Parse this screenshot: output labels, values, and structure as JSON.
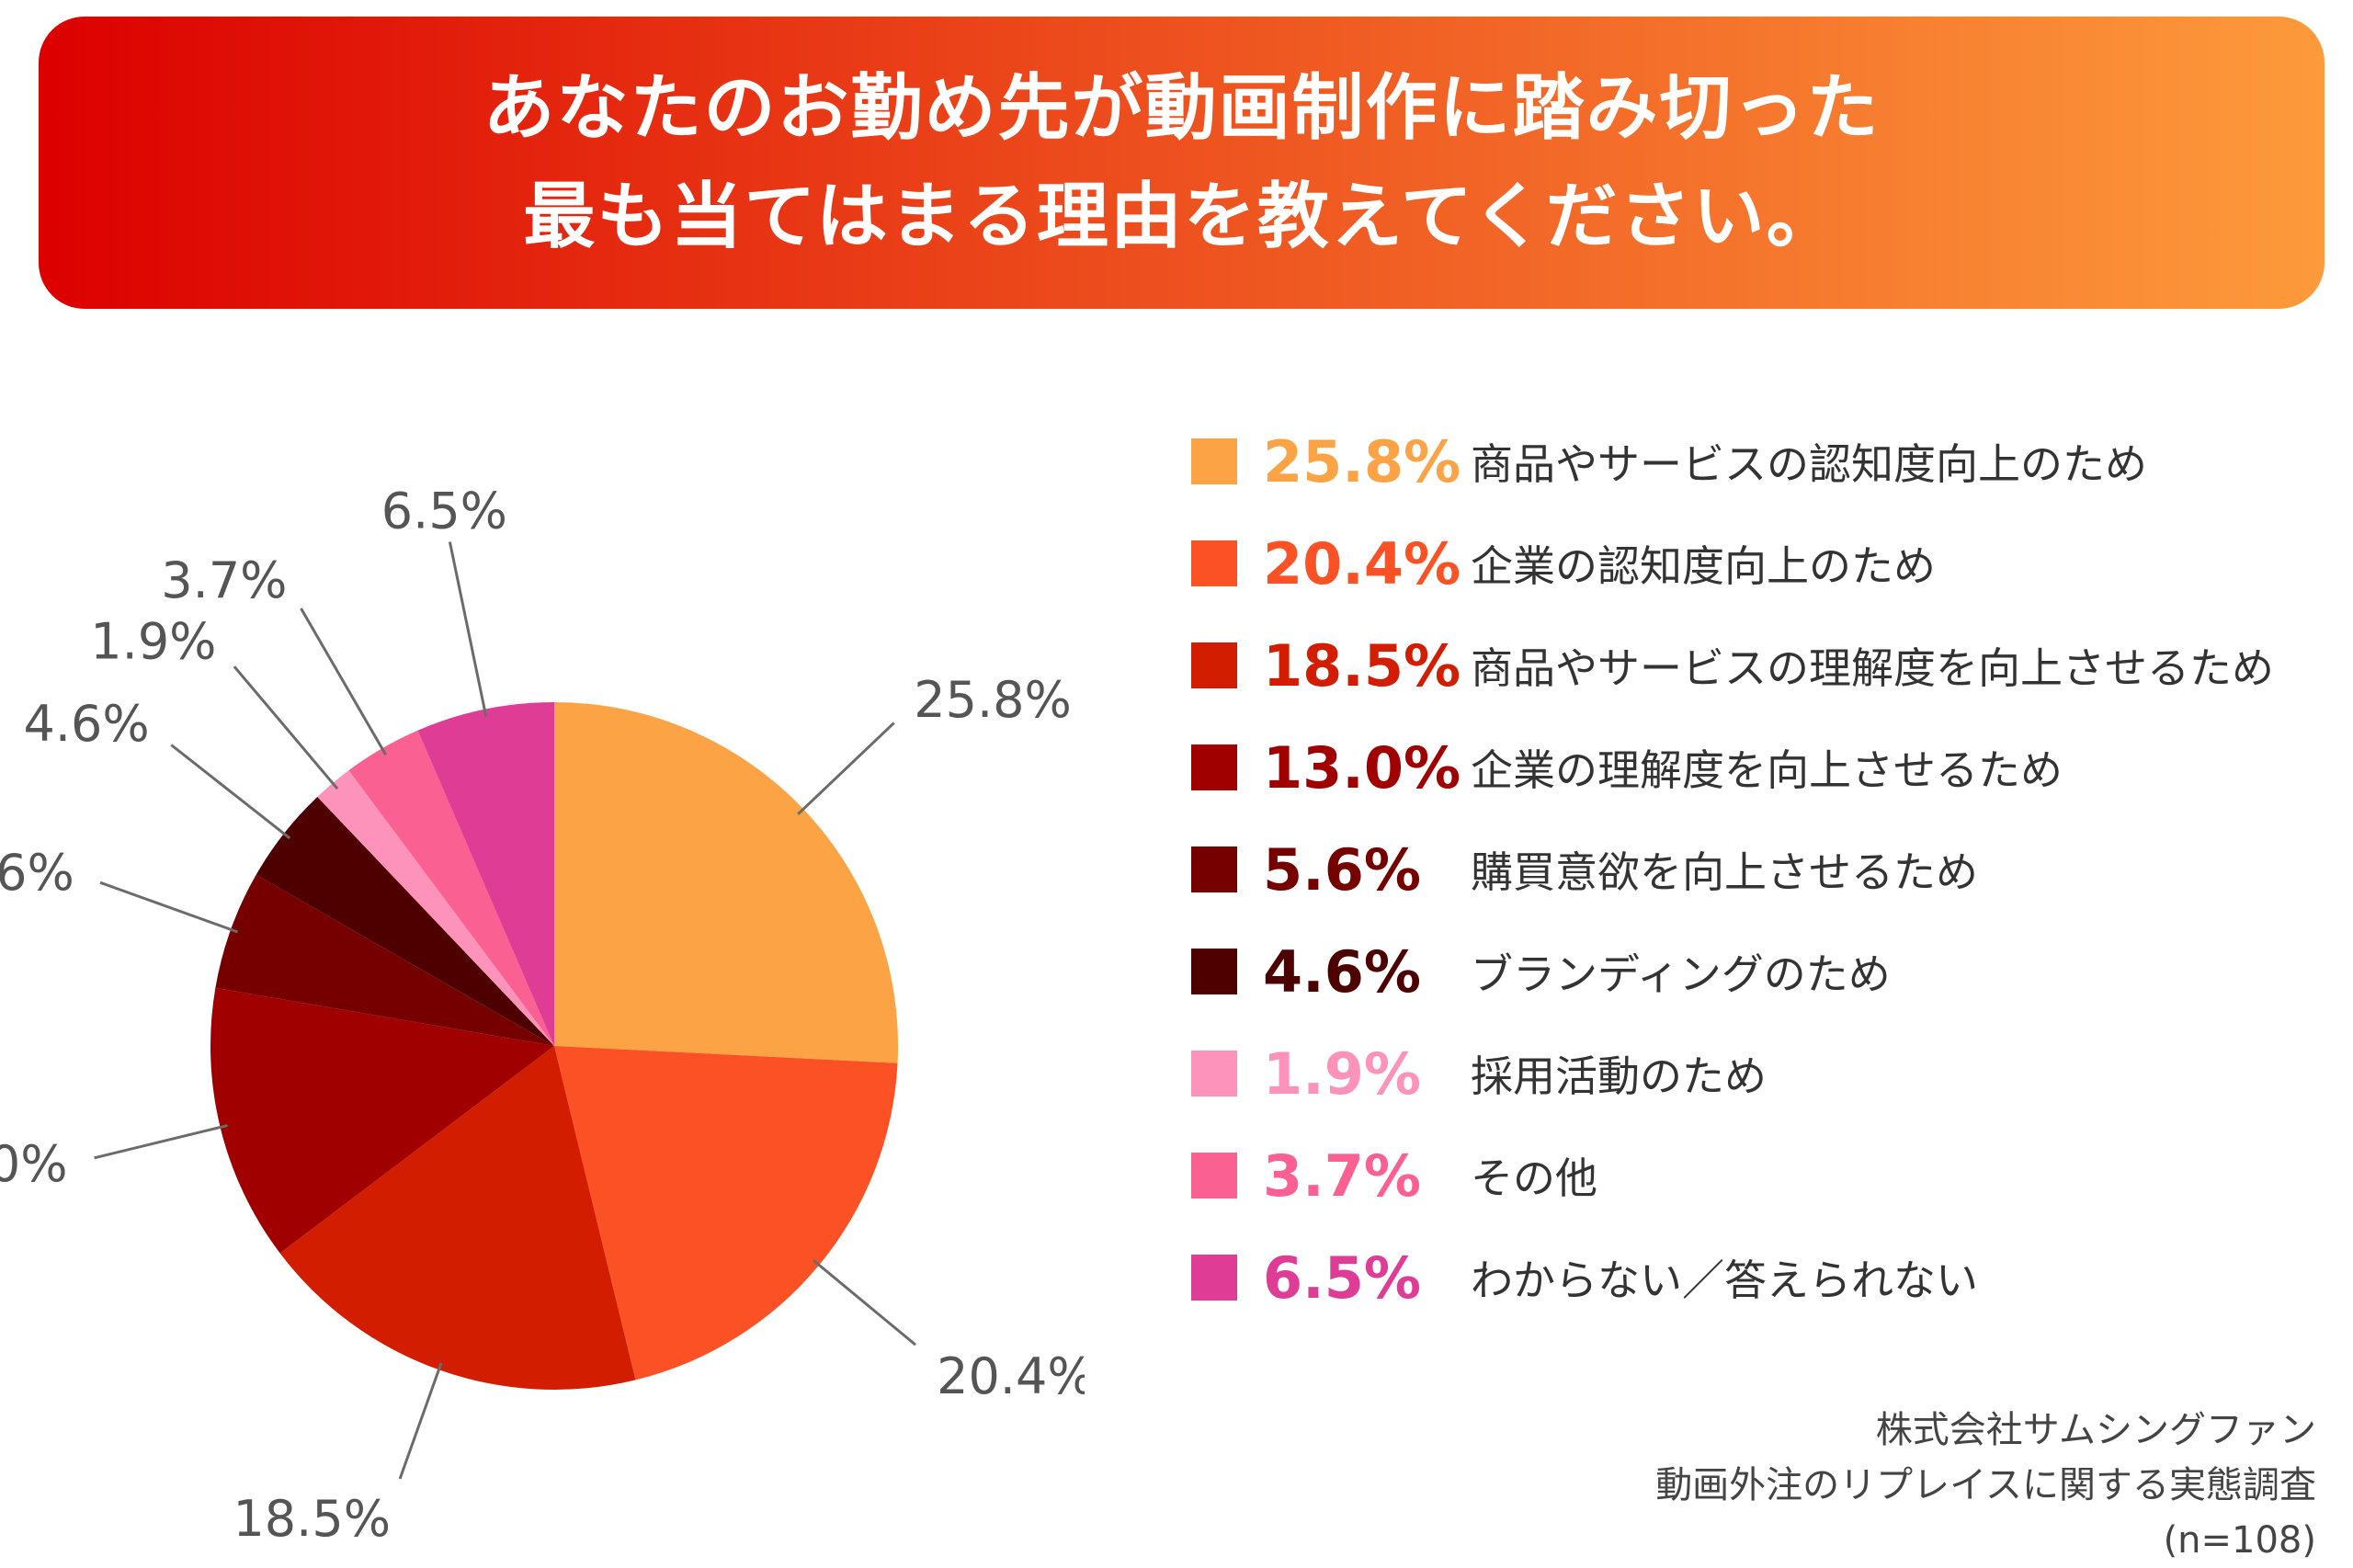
{
  "title": {
    "line1": "あなたのお勤め先が動画制作に踏み切った",
    "line2": "最も当てはまる理由を教えてください。"
  },
  "chart_data": {
    "type": "pie",
    "start": "12 o'clock",
    "direction": "clockwise",
    "categories": [
      "商品やサービスの認知度向上のため",
      "企業の認知度向上のため",
      "商品やサービスの理解度を向上させるため",
      "企業の理解度を向上させるため",
      "購買意欲を向上させるため",
      "ブランディングのため",
      "採用活動のため",
      "その他",
      "わからない／答えられない"
    ],
    "values": [
      25.8,
      20.4,
      18.5,
      13.0,
      5.6,
      4.6,
      1.9,
      3.7,
      6.5
    ],
    "value_labels": [
      "25.8%",
      "20.4%",
      "18.5%",
      "13.0%",
      "5.6%",
      "4.6%",
      "1.9%",
      "3.7%",
      "6.5%"
    ],
    "colors": [
      "#fba345",
      "#fb5124",
      "#d21d00",
      "#a00000",
      "#760000",
      "#4e0000",
      "#fd93bb",
      "#fb6093",
      "#df3c95"
    ],
    "unit": "%",
    "legend_position": "right"
  },
  "source": {
    "company": "株式会社サムシングファン",
    "survey": "動画外注のリプレイスに関する実態調査",
    "sample": "(n=108)"
  }
}
